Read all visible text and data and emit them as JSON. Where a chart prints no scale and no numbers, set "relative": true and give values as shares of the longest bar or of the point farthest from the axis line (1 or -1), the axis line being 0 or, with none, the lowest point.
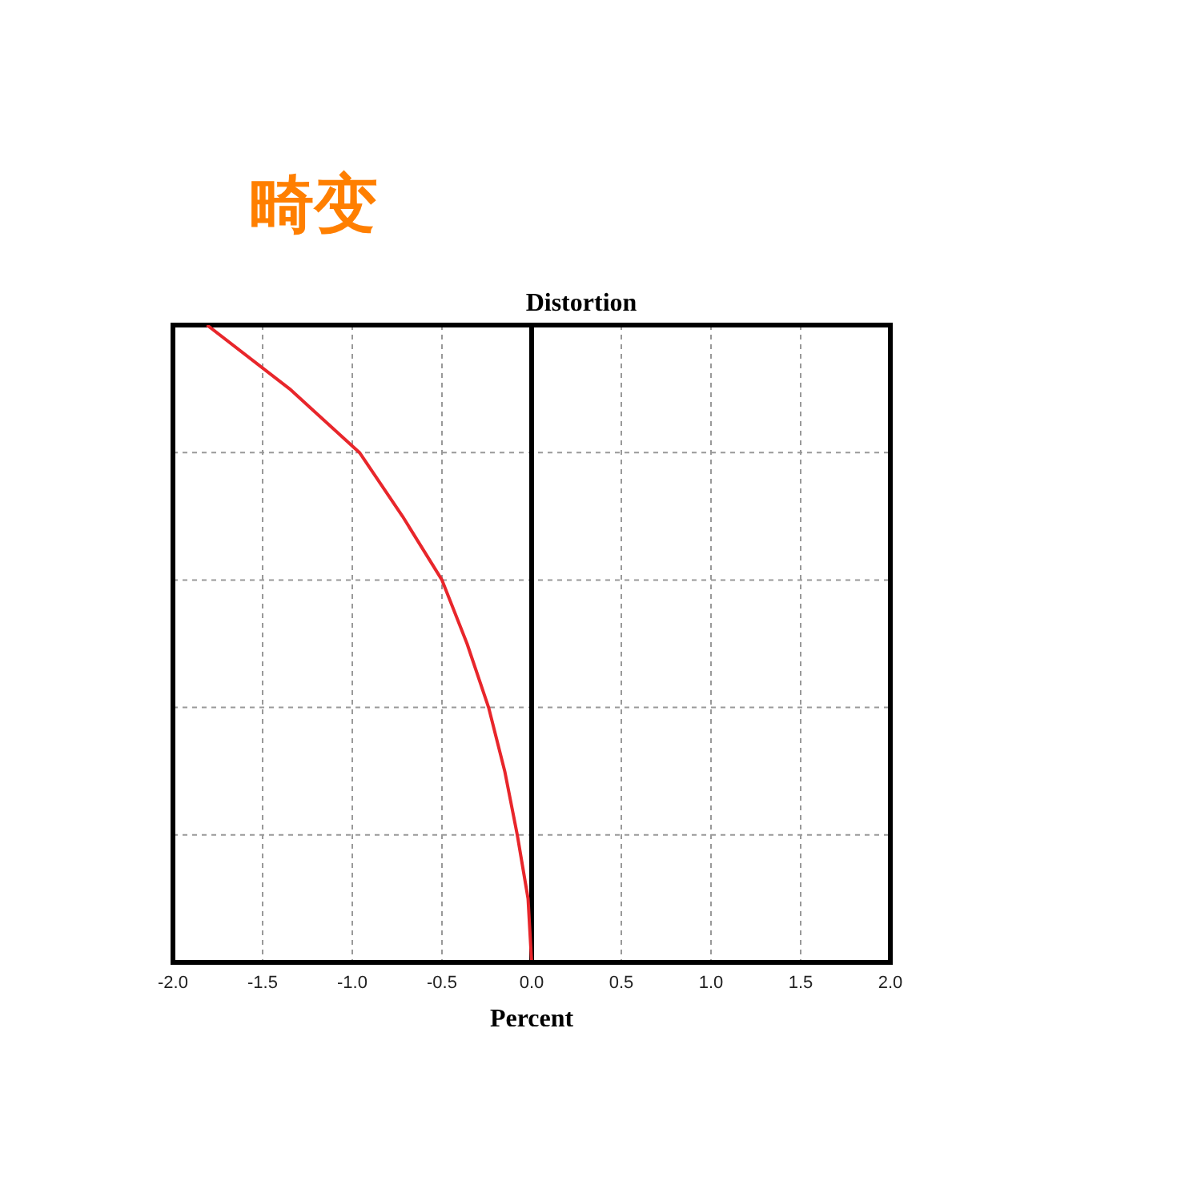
{
  "chart_data": {
    "type": "line",
    "title": "畸变",
    "subtitle": "Distortion",
    "xlabel": "Percent",
    "x": [
      -1.81,
      -1.35,
      -0.96,
      -0.72,
      -0.5,
      -0.36,
      -0.24,
      -0.15,
      -0.08,
      -0.02,
      0
    ],
    "series": [
      {
        "color": "#e8262b",
        "values": [
          1,
          0.9,
          0.8,
          0.7,
          0.6,
          0.5,
          0.4,
          0.3,
          0.2,
          0.1,
          0
        ]
      }
    ],
    "relative": true,
    "xlim": [
      -2,
      2
    ],
    "xticks": [
      {
        "value": -2,
        "label": "-2.0"
      },
      {
        "value": -1.5,
        "label": "-1.5"
      },
      {
        "value": -1,
        "label": "-1.0"
      },
      {
        "value": -0.5,
        "label": "-0.5"
      },
      {
        "value": 0,
        "label": "0.0"
      },
      {
        "value": 0.5,
        "label": "0.5"
      },
      {
        "value": 1,
        "label": "1.0"
      },
      {
        "value": 1.5,
        "label": "1.5"
      },
      {
        "value": 2,
        "label": "2.0"
      }
    ],
    "ref_lines": [
      {
        "axis": "x",
        "value": 0,
        "color": "#000000"
      }
    ],
    "grid": true,
    "marker": "none",
    "line_style": "solid",
    "tick_labels": "x",
    "legend": false
  }
}
